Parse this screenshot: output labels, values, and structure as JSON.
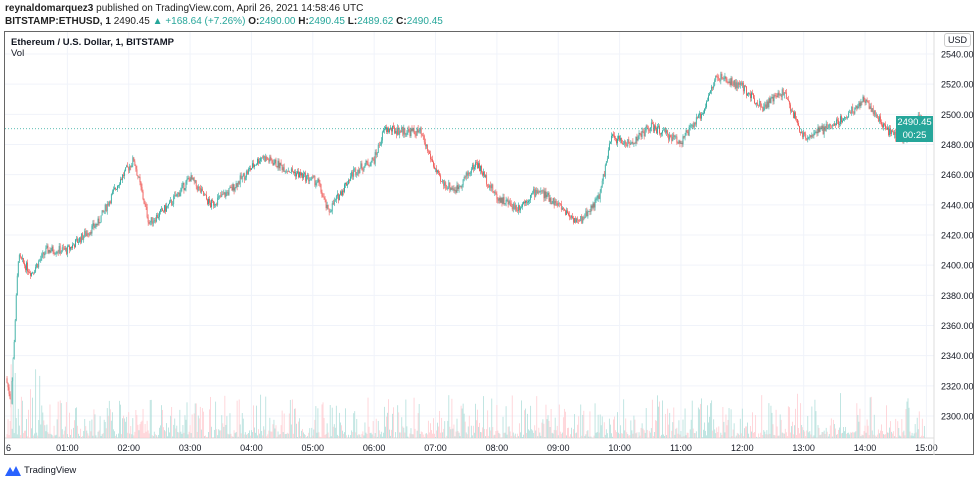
{
  "header": {
    "author": "reynaldomarquez3",
    "published": "published on TradingView.com, April 26, 2021 14:58:46 UTC",
    "symbol": "BITSTAMP:ETHUSD, 1",
    "last": "2490.45",
    "change": "+168.64 (+7.26%)",
    "o_label": "O:",
    "o": "2490.00",
    "h_label": "H:",
    "h": "2490.45",
    "l_label": "L:",
    "l": "2489.62",
    "c_label": "C:",
    "c": "2490.45"
  },
  "legend": {
    "title": "Ethereum / U.S. Dollar, 1, BITSTAMP",
    "vol": "Vol"
  },
  "currency": "USD",
  "price_badge": {
    "price": "2490.45",
    "countdown": "00:25"
  },
  "footer": {
    "brand": "TradingView"
  },
  "colors": {
    "up": "#26a69a",
    "down": "#ef5350",
    "up_vol": "#b2dfdb",
    "down_vol": "#ffcdd2",
    "grid": "#f0f3fa"
  },
  "chart_data": {
    "type": "candlestick",
    "y_ticks": [
      "2540.00",
      "2520.00",
      "2500.00",
      "2480.00",
      "2460.00",
      "2440.00",
      "2420.00",
      "2400.00",
      "2380.00",
      "2360.00",
      "2340.00",
      "2320.00",
      "2300.00"
    ],
    "ylim": [
      2292,
      2552
    ],
    "x_ticks": [
      "6",
      "01:00",
      "02:00",
      "03:00",
      "04:00",
      "05:00",
      "06:00",
      "07:00",
      "08:00",
      "09:00",
      "10:00",
      "11:00",
      "12:00",
      "13:00",
      "14:00",
      "15:00"
    ],
    "grid": true,
    "price_path": [
      {
        "t": "00:00",
        "p": 2325
      },
      {
        "t": "00:05",
        "p": 2310
      },
      {
        "t": "00:12",
        "p": 2405
      },
      {
        "t": "00:25",
        "p": 2395
      },
      {
        "t": "00:40",
        "p": 2410
      },
      {
        "t": "01:00",
        "p": 2410
      },
      {
        "t": "01:30",
        "p": 2428
      },
      {
        "t": "01:50",
        "p": 2455
      },
      {
        "t": "02:05",
        "p": 2470
      },
      {
        "t": "02:20",
        "p": 2428
      },
      {
        "t": "02:40",
        "p": 2440
      },
      {
        "t": "03:00",
        "p": 2458
      },
      {
        "t": "03:20",
        "p": 2440
      },
      {
        "t": "03:40",
        "p": 2450
      },
      {
        "t": "04:10",
        "p": 2472
      },
      {
        "t": "04:40",
        "p": 2462
      },
      {
        "t": "05:05",
        "p": 2455
      },
      {
        "t": "05:15",
        "p": 2435
      },
      {
        "t": "05:40",
        "p": 2462
      },
      {
        "t": "06:00",
        "p": 2470
      },
      {
        "t": "06:10",
        "p": 2490
      },
      {
        "t": "06:45",
        "p": 2488
      },
      {
        "t": "07:05",
        "p": 2455
      },
      {
        "t": "07:20",
        "p": 2450
      },
      {
        "t": "07:40",
        "p": 2468
      },
      {
        "t": "08:00",
        "p": 2445
      },
      {
        "t": "08:20",
        "p": 2438
      },
      {
        "t": "08:40",
        "p": 2450
      },
      {
        "t": "09:00",
        "p": 2440
      },
      {
        "t": "09:20",
        "p": 2428
      },
      {
        "t": "09:40",
        "p": 2445
      },
      {
        "t": "09:52",
        "p": 2485
      },
      {
        "t": "10:10",
        "p": 2480
      },
      {
        "t": "10:30",
        "p": 2492
      },
      {
        "t": "11:00",
        "p": 2482
      },
      {
        "t": "11:20",
        "p": 2500
      },
      {
        "t": "11:35",
        "p": 2525
      },
      {
        "t": "12:00",
        "p": 2518
      },
      {
        "t": "12:20",
        "p": 2505
      },
      {
        "t": "12:40",
        "p": 2515
      },
      {
        "t": "13:00",
        "p": 2485
      },
      {
        "t": "13:20",
        "p": 2490
      },
      {
        "t": "13:40",
        "p": 2498
      },
      {
        "t": "14:00",
        "p": 2510
      },
      {
        "t": "14:20",
        "p": 2490
      },
      {
        "t": "14:40",
        "p": 2483
      },
      {
        "t": "14:52",
        "p": 2497
      },
      {
        "t": "14:58",
        "p": 2490.45
      }
    ],
    "last_price": 2490.45
  }
}
